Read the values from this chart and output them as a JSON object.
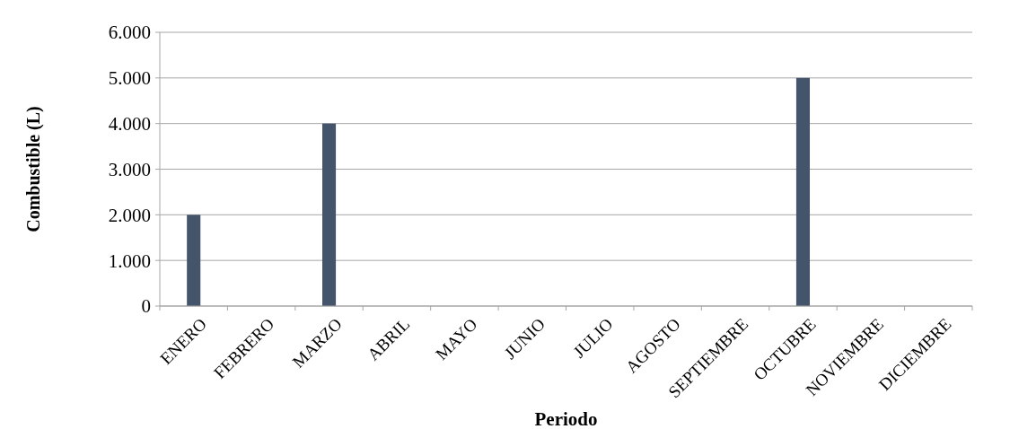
{
  "chart_data": {
    "type": "bar",
    "xlabel": "Periodo",
    "ylabel": "Combustible (L)",
    "categories": [
      "ENERO",
      "FEBRERO",
      "MARZO",
      "ABRIL",
      "MAYO",
      "JUNIO",
      "JULIO",
      "AGOSTO",
      "SEPTIEMBRE",
      "OCTUBRE",
      "NOVIEMBRE",
      "DICIEMBRE"
    ],
    "values": [
      2000,
      0,
      4000,
      0,
      0,
      0,
      0,
      0,
      0,
      5000,
      0,
      0
    ],
    "color": "#44546a",
    "ylim": [
      0,
      6000
    ],
    "yticks": [
      0,
      {
        "value": 1000,
        "label": "1.000"
      },
      {
        "value": 2000,
        "label": "2.000"
      },
      {
        "value": 3000,
        "label": "3.000"
      },
      {
        "value": 4000,
        "label": "4.000"
      },
      {
        "value": 5000,
        "label": "5.000"
      },
      {
        "value": 6000,
        "label": "6.000"
      }
    ],
    "grid": "y"
  }
}
